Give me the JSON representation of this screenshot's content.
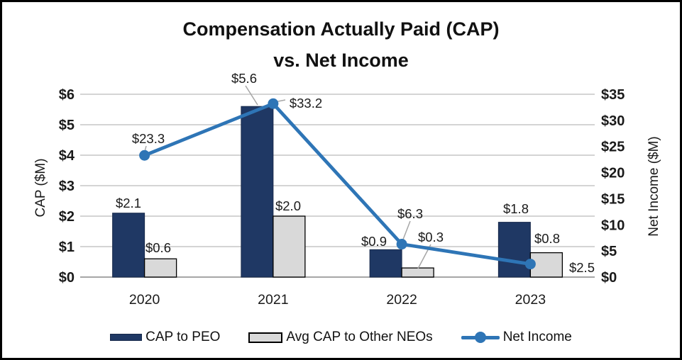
{
  "chart_data": {
    "type": "combo-bar-line",
    "title_line1": "Compensation Actually Paid (CAP)",
    "title_line2": "vs. Net Income",
    "categories": [
      "2020",
      "2021",
      "2022",
      "2023"
    ],
    "series": [
      {
        "name": "CAP to PEO",
        "type": "bar",
        "axis": "left",
        "color": "#1f3864",
        "values": [
          2.1,
          5.6,
          0.9,
          1.8
        ],
        "labels": [
          "$2.1",
          "$5.6",
          "$0.9",
          "$1.8"
        ]
      },
      {
        "name": "Avg CAP to Other NEOs",
        "type": "bar",
        "axis": "left",
        "color": "#d9d9d9",
        "border_color": "#000000",
        "values": [
          0.6,
          2.0,
          0.3,
          0.8
        ],
        "labels": [
          "$0.6",
          "$2.0",
          "$0.3",
          "$0.8"
        ]
      },
      {
        "name": "Net Income",
        "type": "line",
        "axis": "right",
        "color": "#2e75b6",
        "values": [
          23.3,
          33.2,
          6.3,
          2.5
        ],
        "labels": [
          "$23.3",
          "$33.2",
          "$6.3",
          "$2.5"
        ]
      }
    ],
    "left_axis": {
      "title": "CAP ($M)",
      "min": 0,
      "max": 6,
      "ticks": [
        "$0",
        "$1",
        "$2",
        "$3",
        "$4",
        "$5",
        "$6"
      ]
    },
    "right_axis": {
      "title": "Net Income ($M)",
      "min": 0,
      "max": 35,
      "ticks": [
        "$0",
        "$5",
        "$10",
        "$15",
        "$20",
        "$25",
        "$30",
        "$35"
      ]
    },
    "grid": true,
    "legend_position": "bottom",
    "colors": {
      "bar_peo": "#1f3864",
      "bar_neos_fill": "#d9d9d9",
      "bar_neos_border": "#000000",
      "line_net_income": "#2e75b6",
      "gridline": "#c6c6c6",
      "axis_line": "#a6a6a6",
      "leader_line": "#a6a6a6",
      "text": "#111111"
    }
  }
}
